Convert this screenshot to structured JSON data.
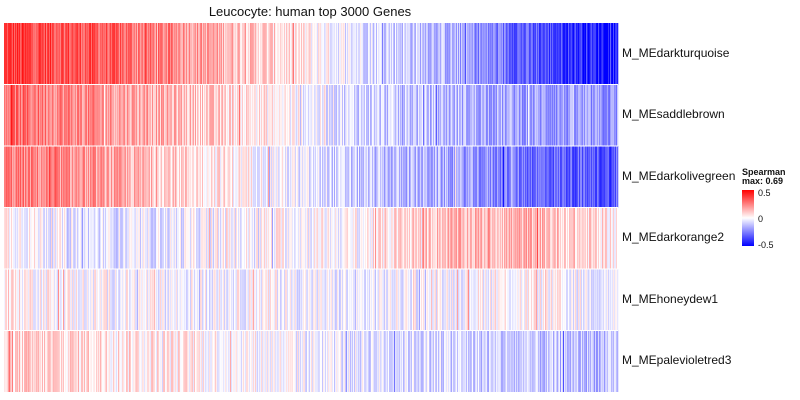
{
  "chart_data": {
    "type": "heatmap",
    "title": "Leucocyte: human top 3000 Genes",
    "rows": [
      "M_MEdarkturquoise",
      "M_MEsaddlebrown",
      "M_MEdarkolivegreen",
      "M_MEdarkorange2",
      "M_MEhoneydew1",
      "M_MEpalevioletred3"
    ],
    "columns_count": 3000,
    "value_range": [
      -0.69,
      0.69
    ],
    "row_profiles": [
      [
        0.52,
        0.45,
        0.3,
        0.12,
        -0.05,
        -0.18,
        -0.45,
        -0.62
      ],
      [
        0.4,
        0.3,
        0.18,
        0.05,
        -0.1,
        -0.18,
        -0.25,
        -0.3
      ],
      [
        0.35,
        0.26,
        0.12,
        0.0,
        -0.15,
        -0.22,
        -0.38,
        -0.48
      ],
      [
        0.05,
        -0.08,
        -0.05,
        0.02,
        0.0,
        0.18,
        0.2,
        0.05
      ],
      [
        0.05,
        0.0,
        -0.02,
        0.0,
        -0.06,
        0.0,
        0.02,
        -0.05
      ],
      [
        0.12,
        0.1,
        0.05,
        0.0,
        -0.06,
        -0.1,
        -0.16,
        -0.18
      ]
    ],
    "legend": {
      "title_line1": "Spearman",
      "title_line2": "max: 0.69",
      "ticks": [
        "0.5",
        "0",
        "-0.5"
      ],
      "colors": {
        "high": "#ff0000",
        "mid": "#ffffff",
        "low": "#0000ff"
      }
    }
  }
}
